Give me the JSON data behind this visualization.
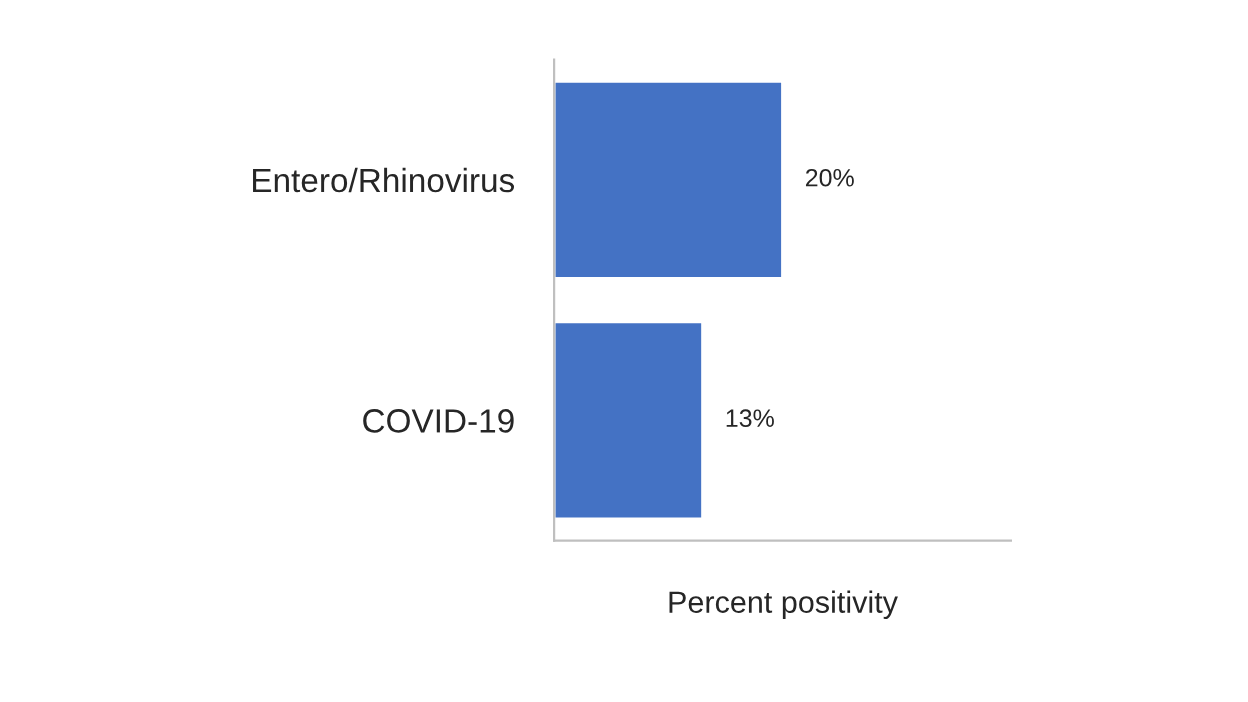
{
  "chart_data": {
    "type": "bar",
    "orientation": "horizontal",
    "xlabel": "Percent positivity",
    "categories": [
      "Entero/Rhinovirus",
      "COVID-19"
    ],
    "values": [
      20,
      13
    ],
    "value_labels": [
      "20%",
      "13%"
    ],
    "color": "#4472c4",
    "xlim": [
      0,
      40
    ],
    "tick_labels": "y",
    "grid": false,
    "legend": false
  }
}
